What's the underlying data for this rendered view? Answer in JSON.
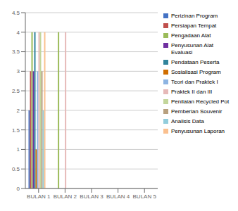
{
  "chart_data": {
    "type": "bar",
    "categories": [
      "BULAN 1",
      "BULAN 2",
      "BULAN 3",
      "BULAN 4",
      "BULAN 5"
    ],
    "series": [
      {
        "name": "Perizinan Program",
        "color": "#4472c4",
        "values": [
          2,
          0,
          0,
          0,
          0
        ]
      },
      {
        "name": "Persiapan Tempat",
        "color": "#c0504d",
        "values": [
          3,
          0,
          0,
          0,
          0
        ]
      },
      {
        "name": "Pengadaan Alat",
        "color": "#9bbb59",
        "values": [
          4,
          4,
          0,
          0,
          0
        ]
      },
      {
        "name": "Penyusunan Alat Evaluasi",
        "color": "#7030a0",
        "values": [
          3,
          0,
          0,
          0,
          0
        ]
      },
      {
        "name": "Pendataan Peserta",
        "color": "#31849b",
        "values": [
          4,
          0,
          0,
          0,
          0
        ]
      },
      {
        "name": "Sosialisasi Program",
        "color": "#d06e00",
        "values": [
          1,
          0,
          0,
          0,
          0
        ]
      },
      {
        "name": "Teori dan Praktek I",
        "color": "#8db4e2",
        "values": [
          3,
          0,
          0,
          0,
          0
        ]
      },
      {
        "name": "Praktek II dan III",
        "color": "#e6b9b8",
        "values": [
          4,
          4,
          0,
          0,
          0
        ]
      },
      {
        "name": "Penilaian Recycled Pot",
        "color": "#c3d69b",
        "values": [
          4,
          0,
          0,
          0,
          0
        ]
      },
      {
        "name": "Pemberian Souvenir",
        "color": "#b8a07e",
        "values": [
          3,
          0,
          0,
          0,
          0
        ]
      },
      {
        "name": "Analisis Data",
        "color": "#92cddc",
        "values": [
          2,
          0,
          0,
          0,
          0
        ]
      },
      {
        "name": "Penyusunan Laporan",
        "color": "#fac08f",
        "values": [
          4,
          0,
          0,
          0,
          0
        ]
      }
    ],
    "ylim": [
      0,
      4.5
    ],
    "yticks": [
      0,
      0.5,
      1,
      1.5,
      2,
      2.5,
      3,
      3.5,
      4,
      4.5
    ],
    "grid": true,
    "legend": "right"
  }
}
